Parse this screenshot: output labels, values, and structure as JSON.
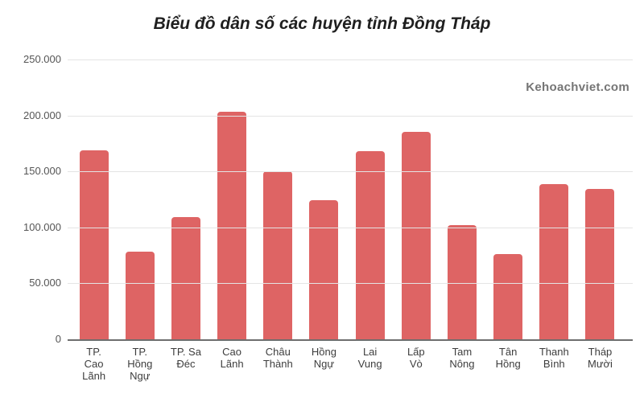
{
  "title": "Biểu đồ dân số các huyện tỉnh Đồng Tháp",
  "watermark": "Kehoachviet.com",
  "colors": {
    "background": "#ffffff",
    "bar": "#de6464",
    "gridline": "#e4e4e4",
    "axis_line": "#6e6e6e",
    "y_label": "#555555",
    "x_label": "#3d3d3d",
    "title": "#1f1f1f",
    "watermark": "#757575"
  },
  "chart_data": {
    "type": "bar",
    "title": "Biểu đồ dân số các huyện tỉnh Đồng Tháp",
    "categories": [
      "TP. Cao Lãnh",
      "TP. Hồng Ngự",
      "TP. Sa Đéc",
      "Cao Lãnh",
      "Châu Thành",
      "Hồng Ngự",
      "Lai Vung",
      "Lấp Vò",
      "Tam Nông",
      "Tân Hồng",
      "Thanh Bình",
      "Tháp Mười"
    ],
    "category_label_lines": [
      [
        "TP.",
        "Cao",
        "Lãnh"
      ],
      [
        "TP.",
        "Hồng",
        "Ngự"
      ],
      [
        "TP. Sa",
        "Đéc"
      ],
      [
        "Cao",
        "Lãnh"
      ],
      [
        "Châu",
        "Thành"
      ],
      [
        "Hồng",
        "Ngự"
      ],
      [
        "Lai",
        "Vung"
      ],
      [
        "Lấp",
        "Vò"
      ],
      [
        "Tam",
        "Nông"
      ],
      [
        "Tân",
        "Hồng"
      ],
      [
        "Thanh",
        "Bình"
      ],
      [
        "Tháp",
        "Mười"
      ]
    ],
    "values": [
      169000,
      78000,
      109000,
      203000,
      150000,
      124000,
      168000,
      185000,
      102000,
      76000,
      139000,
      134000
    ],
    "xlabel": "",
    "ylabel": "",
    "ylim": [
      0,
      250000
    ],
    "yticks": [
      0,
      50000,
      100000,
      150000,
      200000,
      250000
    ],
    "ytick_labels": [
      "0",
      "50.000",
      "100.000",
      "150.000",
      "200.000",
      "250.000"
    ],
    "grid": true,
    "legend": "none",
    "bar_color": "#de6464"
  }
}
